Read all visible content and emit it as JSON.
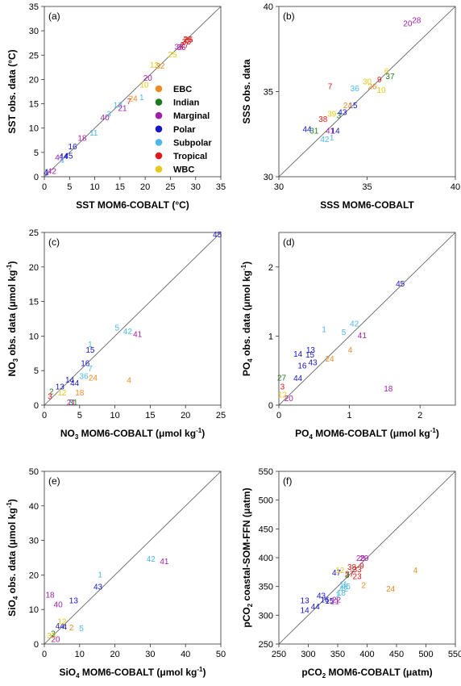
{
  "category_colors": {
    "EBC": "#f08a24",
    "Indian": "#1f7a1f",
    "Marginal": "#a020a8",
    "Polar": "#1616c8",
    "Subpolar": "#4cb8e8",
    "Tropical": "#e01818",
    "WBC": "#e8c81c"
  },
  "legend": {
    "entries": [
      "EBC",
      "Indian",
      "Marginal",
      "Polar",
      "Subpolar",
      "Tropical",
      "WBC"
    ]
  },
  "chart_data": [
    {
      "type": "scatter",
      "panel": "(a)",
      "xlabel": "SST MOM6-COBALT (°C)",
      "ylabel": "SST obs. data (°C)",
      "xlim": [
        0,
        35
      ],
      "ylim": [
        0,
        35
      ],
      "xticks": [
        0,
        5,
        10,
        15,
        20,
        25,
        30,
        35
      ],
      "yticks": [
        0,
        5,
        10,
        15,
        20,
        25,
        30,
        35
      ],
      "one_to_one_line": true,
      "points": [
        {
          "label": "1",
          "x": 0.5,
          "y": 1.0,
          "group": "Polar"
        },
        {
          "label": "4",
          "x": 0.3,
          "y": 0.8,
          "group": "Polar"
        },
        {
          "label": "42",
          "x": 1.5,
          "y": 1.2,
          "group": "Marginal"
        },
        {
          "label": "41",
          "x": 3.0,
          "y": 4.0,
          "group": "Marginal"
        },
        {
          "label": "44",
          "x": 3.8,
          "y": 4.2,
          "group": "Polar"
        },
        {
          "label": "45",
          "x": 4.8,
          "y": 4.3,
          "group": "Polar"
        },
        {
          "label": "4",
          "x": 3.5,
          "y": 3.4,
          "group": "Subpolar"
        },
        {
          "label": "16",
          "x": 5.6,
          "y": 6.2,
          "group": "Polar"
        },
        {
          "label": "18",
          "x": 7.5,
          "y": 8.0,
          "group": "Marginal"
        },
        {
          "label": "11",
          "x": 9.8,
          "y": 9.0,
          "group": "Subpolar"
        },
        {
          "label": "40",
          "x": 12.0,
          "y": 12.2,
          "group": "Marginal"
        },
        {
          "label": "3",
          "x": 12.8,
          "y": 12.9,
          "group": "Subpolar"
        },
        {
          "label": "13",
          "x": 14.6,
          "y": 14.8,
          "group": "Subpolar"
        },
        {
          "label": "21",
          "x": 15.5,
          "y": 14.1,
          "group": "Marginal"
        },
        {
          "label": "7",
          "x": 16.8,
          "y": 15.5,
          "group": "Tropical"
        },
        {
          "label": "24",
          "x": 17.6,
          "y": 16.1,
          "group": "EBC"
        },
        {
          "label": "1",
          "x": 19.3,
          "y": 16.3,
          "group": "Subpolar"
        },
        {
          "label": "20",
          "x": 20.5,
          "y": 20.3,
          "group": "Marginal"
        },
        {
          "label": "10",
          "x": 19.8,
          "y": 18.9,
          "group": "WBC"
        },
        {
          "label": "12",
          "x": 21.8,
          "y": 23.0,
          "group": "WBC"
        },
        {
          "label": "32",
          "x": 23.0,
          "y": 22.8,
          "group": "EBC"
        },
        {
          "label": "25",
          "x": 25.4,
          "y": 25.1,
          "group": "WBC"
        },
        {
          "label": "33",
          "x": 26.7,
          "y": 26.7,
          "group": "Marginal"
        },
        {
          "label": "36",
          "x": 27.2,
          "y": 26.6,
          "group": "Marginal"
        },
        {
          "label": "27",
          "x": 27.8,
          "y": 27.1,
          "group": "Tropical"
        },
        {
          "label": "33",
          "x": 28.2,
          "y": 27.8,
          "group": "Tropical"
        },
        {
          "label": "28",
          "x": 28.4,
          "y": 28.3,
          "group": "Tropical"
        },
        {
          "label": "25",
          "x": 28.6,
          "y": 28.2,
          "group": "Tropical"
        }
      ]
    },
    {
      "type": "scatter",
      "panel": "(b)",
      "xlabel": "SSS MOM6-COBALT",
      "ylabel": "SSS obs. data",
      "xlim": [
        30,
        40
      ],
      "ylim": [
        30,
        40
      ],
      "xticks": [
        30,
        35,
        40
      ],
      "yticks": [
        30,
        35,
        40
      ],
      "one_to_one_line": true,
      "points": [
        {
          "label": "20",
          "x": 37.3,
          "y": 39.0,
          "group": "Marginal"
        },
        {
          "label": "28",
          "x": 37.8,
          "y": 39.2,
          "group": "Marginal"
        },
        {
          "label": "7",
          "x": 32.9,
          "y": 35.3,
          "group": "Tropical"
        },
        {
          "label": "44",
          "x": 31.6,
          "y": 32.8,
          "group": "Polar"
        },
        {
          "label": "31",
          "x": 32.0,
          "y": 32.7,
          "group": "Indian"
        },
        {
          "label": "42",
          "x": 32.6,
          "y": 32.2,
          "group": "Subpolar"
        },
        {
          "label": "1",
          "x": 33.0,
          "y": 32.3,
          "group": "Subpolar"
        },
        {
          "label": "14",
          "x": 33.2,
          "y": 32.7,
          "group": "Polar"
        },
        {
          "label": "41",
          "x": 32.9,
          "y": 32.7,
          "group": "Marginal"
        },
        {
          "label": "38",
          "x": 32.5,
          "y": 33.4,
          "group": "Tropical"
        },
        {
          "label": "39",
          "x": 33.0,
          "y": 33.7,
          "group": "WBC"
        },
        {
          "label": "3",
          "x": 33.4,
          "y": 33.6,
          "group": "Indian"
        },
        {
          "label": "43",
          "x": 33.6,
          "y": 33.8,
          "group": "Polar"
        },
        {
          "label": "15",
          "x": 34.2,
          "y": 34.2,
          "group": "Polar"
        },
        {
          "label": "24",
          "x": 33.9,
          "y": 34.2,
          "group": "EBC"
        },
        {
          "label": "36",
          "x": 34.3,
          "y": 35.2,
          "group": "Subpolar"
        },
        {
          "label": "10",
          "x": 35.8,
          "y": 35.1,
          "group": "WBC"
        },
        {
          "label": "26",
          "x": 35.3,
          "y": 35.3,
          "group": "EBC"
        },
        {
          "label": "9",
          "x": 35.7,
          "y": 35.7,
          "group": "Tropical"
        },
        {
          "label": "6",
          "x": 36.1,
          "y": 36.2,
          "group": "WBC"
        },
        {
          "label": "37",
          "x": 36.3,
          "y": 35.9,
          "group": "Indian"
        },
        {
          "label": "30",
          "x": 35.0,
          "y": 35.6,
          "group": "WBC"
        }
      ]
    },
    {
      "type": "scatter",
      "panel": "(c)",
      "xlabel": "NO3 MOM6-COBALT (μmol kg-1)",
      "ylabel": "NO3 obs. data (μmol kg-1)",
      "xlim": [
        0,
        25
      ],
      "ylim": [
        0,
        25
      ],
      "xticks": [
        0,
        5,
        10,
        15,
        20,
        25
      ],
      "yticks": [
        0,
        5,
        10,
        15,
        20,
        25
      ],
      "one_to_one_line": true,
      "points": [
        {
          "label": "45",
          "x": 24.5,
          "y": 24.7,
          "group": "Polar"
        },
        {
          "label": "5",
          "x": 10.3,
          "y": 11.2,
          "group": "Subpolar"
        },
        {
          "label": "42",
          "x": 11.8,
          "y": 10.7,
          "group": "Subpolar"
        },
        {
          "label": "41",
          "x": 13.2,
          "y": 10.3,
          "group": "Marginal"
        },
        {
          "label": "1",
          "x": 6.5,
          "y": 8.8,
          "group": "Subpolar"
        },
        {
          "label": "15",
          "x": 6.5,
          "y": 8.0,
          "group": "Polar"
        },
        {
          "label": "16",
          "x": 5.8,
          "y": 6.1,
          "group": "Polar"
        },
        {
          "label": "7",
          "x": 6.5,
          "y": 5.3,
          "group": "Subpolar"
        },
        {
          "label": "36",
          "x": 5.6,
          "y": 4.2,
          "group": "Subpolar"
        },
        {
          "label": "24",
          "x": 6.9,
          "y": 4.0,
          "group": "EBC"
        },
        {
          "label": "4",
          "x": 12.0,
          "y": 3.6,
          "group": "EBC"
        },
        {
          "label": "14",
          "x": 3.6,
          "y": 3.7,
          "group": "Polar"
        },
        {
          "label": "44",
          "x": 4.3,
          "y": 3.2,
          "group": "Polar"
        },
        {
          "label": "13",
          "x": 2.2,
          "y": 2.7,
          "group": "Polar"
        },
        {
          "label": "18",
          "x": 5.0,
          "y": 1.8,
          "group": "EBC"
        },
        {
          "label": "2",
          "x": 1.0,
          "y": 2.0,
          "group": "Indian"
        },
        {
          "label": "31",
          "x": 4.1,
          "y": 0.4,
          "group": "Indian"
        },
        {
          "label": "21",
          "x": 3.8,
          "y": 0.4,
          "group": "Marginal"
        },
        {
          "label": "3",
          "x": 0.8,
          "y": 1.3,
          "group": "Tropical"
        },
        {
          "label": "12",
          "x": 2.5,
          "y": 1.8,
          "group": "WBC"
        }
      ]
    },
    {
      "type": "scatter",
      "panel": "(d)",
      "xlabel": "PO4 MOM6-COBALT (μmol kg-1)",
      "ylabel": "PO4 obs. data (μmol kg-1)",
      "xlim": [
        0,
        2.5
      ],
      "ylim": [
        0,
        2.5
      ],
      "xticks": [
        0,
        1,
        2
      ],
      "yticks": [
        0,
        1,
        2
      ],
      "one_to_one_line": true,
      "points": [
        {
          "label": "45",
          "x": 1.72,
          "y": 1.76,
          "group": "Polar"
        },
        {
          "label": "42",
          "x": 1.07,
          "y": 1.18,
          "group": "Subpolar"
        },
        {
          "label": "1",
          "x": 0.64,
          "y": 1.1,
          "group": "Subpolar"
        },
        {
          "label": "5",
          "x": 0.92,
          "y": 1.06,
          "group": "Subpolar"
        },
        {
          "label": "41",
          "x": 1.18,
          "y": 1.01,
          "group": "Marginal"
        },
        {
          "label": "13",
          "x": 0.45,
          "y": 0.8,
          "group": "Polar"
        },
        {
          "label": "4",
          "x": 1.01,
          "y": 0.8,
          "group": "EBC"
        },
        {
          "label": "14",
          "x": 0.27,
          "y": 0.74,
          "group": "Polar"
        },
        {
          "label": "15",
          "x": 0.44,
          "y": 0.73,
          "group": "Polar"
        },
        {
          "label": "24",
          "x": 0.72,
          "y": 0.67,
          "group": "EBC"
        },
        {
          "label": "43",
          "x": 0.48,
          "y": 0.62,
          "group": "Polar"
        },
        {
          "label": "16",
          "x": 0.33,
          "y": 0.57,
          "group": "Polar"
        },
        {
          "label": "44",
          "x": 0.27,
          "y": 0.39,
          "group": "Polar"
        },
        {
          "label": "18",
          "x": 1.55,
          "y": 0.24,
          "group": "Marginal"
        },
        {
          "label": "27",
          "x": 0.04,
          "y": 0.4,
          "group": "Indian"
        },
        {
          "label": "20",
          "x": 0.14,
          "y": 0.1,
          "group": "Marginal"
        },
        {
          "label": "3",
          "x": 0.05,
          "y": 0.27,
          "group": "Tropical"
        },
        {
          "label": "12",
          "x": 0.05,
          "y": 0.15,
          "group": "WBC"
        }
      ]
    },
    {
      "type": "scatter",
      "panel": "(e)",
      "xlabel": "SiO4 MOM6-COBALT (μmol kg-1)",
      "ylabel": "SiO4 obs. data (μmol kg-1)",
      "xlim": [
        0,
        50
      ],
      "ylim": [
        0,
        50
      ],
      "xticks": [
        0,
        10,
        20,
        30,
        40,
        50
      ],
      "yticks": [
        0,
        10,
        20,
        30,
        40,
        50
      ],
      "one_to_one_line": true,
      "points": [
        {
          "label": "42",
          "x": 30.2,
          "y": 24.7,
          "group": "Subpolar"
        },
        {
          "label": "41",
          "x": 34.0,
          "y": 23.9,
          "group": "Marginal"
        },
        {
          "label": "1",
          "x": 15.8,
          "y": 20.1,
          "group": "Subpolar"
        },
        {
          "label": "43",
          "x": 15.2,
          "y": 16.6,
          "group": "Polar"
        },
        {
          "label": "18",
          "x": 1.6,
          "y": 14.2,
          "group": "Marginal"
        },
        {
          "label": "13",
          "x": 8.3,
          "y": 12.6,
          "group": "Polar"
        },
        {
          "label": "40",
          "x": 3.9,
          "y": 11.4,
          "group": "Marginal"
        },
        {
          "label": "44",
          "x": 4.4,
          "y": 5.2,
          "group": "Polar"
        },
        {
          "label": "4",
          "x": 5.8,
          "y": 5.0,
          "group": "Polar"
        },
        {
          "label": "2",
          "x": 7.7,
          "y": 4.8,
          "group": "EBC"
        },
        {
          "label": "5",
          "x": 10.5,
          "y": 4.6,
          "group": "Subpolar"
        },
        {
          "label": "20",
          "x": 3.2,
          "y": 1.4,
          "group": "Marginal"
        },
        {
          "label": "3",
          "x": 2.5,
          "y": 3.0,
          "group": "Indian"
        },
        {
          "label": "12",
          "x": 5.0,
          "y": 6.6,
          "group": "WBC"
        },
        {
          "label": "33",
          "x": 2.0,
          "y": 2.5,
          "group": "WBC"
        }
      ]
    },
    {
      "type": "scatter",
      "panel": "(f)",
      "xlabel": "pCO2 MOM6-COBALT (μatm)",
      "ylabel": "pCO2 coastal-SOM-FFN (μatm)",
      "xlim": [
        250,
        550
      ],
      "ylim": [
        250,
        550
      ],
      "xticks": [
        250,
        300,
        350,
        400,
        450,
        500,
        550
      ],
      "yticks": [
        250,
        300,
        350,
        400,
        450,
        500,
        550
      ],
      "one_to_one_line": true,
      "points": [
        {
          "label": "4",
          "x": 482,
          "y": 378,
          "group": "EBC"
        },
        {
          "label": "24",
          "x": 440,
          "y": 346,
          "group": "EBC"
        },
        {
          "label": "2",
          "x": 394,
          "y": 352,
          "group": "EBC"
        },
        {
          "label": "28",
          "x": 389,
          "y": 399,
          "group": "Marginal"
        },
        {
          "label": "29",
          "x": 395,
          "y": 399,
          "group": "Marginal"
        },
        {
          "label": "13",
          "x": 294,
          "y": 326,
          "group": "Polar"
        },
        {
          "label": "14",
          "x": 294,
          "y": 309,
          "group": "Polar"
        },
        {
          "label": "44",
          "x": 312,
          "y": 315,
          "group": "Polar"
        },
        {
          "label": "43",
          "x": 322,
          "y": 334,
          "group": "Polar"
        },
        {
          "label": "16",
          "x": 328,
          "y": 327,
          "group": "Polar"
        },
        {
          "label": "15",
          "x": 336,
          "y": 325,
          "group": "Polar"
        },
        {
          "label": "21",
          "x": 345,
          "y": 324,
          "group": "Marginal"
        },
        {
          "label": "22",
          "x": 348,
          "y": 327,
          "group": "Marginal"
        },
        {
          "label": "18",
          "x": 356,
          "y": 339,
          "group": "Subpolar"
        },
        {
          "label": "1",
          "x": 350,
          "y": 336,
          "group": "Subpolar"
        },
        {
          "label": "45",
          "x": 364,
          "y": 350,
          "group": "Subpolar"
        },
        {
          "label": "42",
          "x": 360,
          "y": 346,
          "group": "Subpolar"
        },
        {
          "label": "47",
          "x": 348,
          "y": 374,
          "group": "Polar"
        },
        {
          "label": "38",
          "x": 374,
          "y": 384,
          "group": "Tropical"
        },
        {
          "label": "33",
          "x": 383,
          "y": 380,
          "group": "Tropical"
        },
        {
          "label": "37",
          "x": 370,
          "y": 372,
          "group": "Tropical"
        },
        {
          "label": "23",
          "x": 383,
          "y": 368,
          "group": "Tropical"
        },
        {
          "label": "3",
          "x": 366,
          "y": 370,
          "group": "Indian"
        },
        {
          "label": "12",
          "x": 354,
          "y": 378,
          "group": "WBC"
        },
        {
          "label": "11",
          "x": 360,
          "y": 354,
          "group": "Subpolar"
        },
        {
          "label": "9",
          "x": 391,
          "y": 386,
          "group": "Tropical"
        }
      ]
    }
  ]
}
